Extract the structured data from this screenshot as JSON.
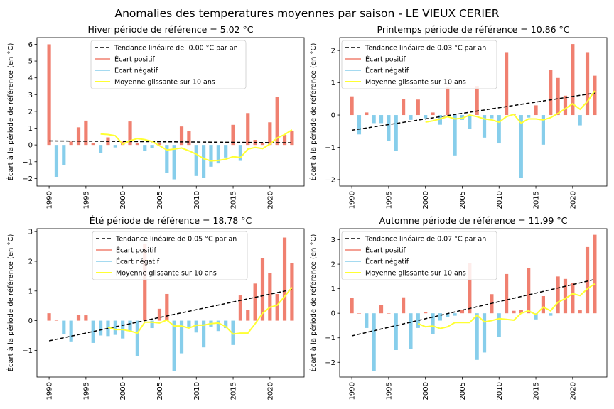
{
  "suptitle": "Anomalies des temperatures moyennes par saison - LE VIEUX CERIER",
  "colors": {
    "positive": "#f08070",
    "negative": "#87ceeb",
    "trend": "#000000",
    "moving_avg": "#ffff33"
  },
  "chart_data": [
    {
      "type": "bar",
      "title": "Hiver période de référence = 5.02 °C",
      "ylabel": "Écart à la période de référence (en °C)",
      "xlabel": "",
      "x": [
        1990,
        1991,
        1992,
        1993,
        1994,
        1995,
        1996,
        1997,
        1998,
        1999,
        2000,
        2001,
        2002,
        2003,
        2004,
        2005,
        2006,
        2007,
        2008,
        2009,
        2010,
        2011,
        2012,
        2013,
        2014,
        2015,
        2016,
        2017,
        2018,
        2019,
        2020,
        2021,
        2022,
        2023
      ],
      "values": [
        6.0,
        -1.9,
        -1.2,
        0.2,
        1.05,
        1.45,
        0.1,
        -0.5,
        0.45,
        -0.15,
        0.2,
        1.4,
        0.1,
        -0.35,
        -0.2,
        0.1,
        -1.65,
        -2.05,
        1.1,
        0.85,
        -1.85,
        -1.95,
        -1.3,
        -1.1,
        -0.75,
        1.2,
        -0.95,
        1.9,
        0.3,
        0.1,
        1.35,
        2.85,
        0.6,
        0.85
      ],
      "moving_avg": [
        null,
        null,
        null,
        null,
        null,
        null,
        null,
        0.65,
        0.62,
        0.55,
        0.05,
        0.25,
        0.38,
        0.32,
        0.2,
        -0.05,
        -0.3,
        -0.25,
        -0.18,
        -0.35,
        -0.55,
        -0.82,
        -0.95,
        -0.92,
        -0.85,
        -0.7,
        -0.75,
        -0.25,
        -0.15,
        -0.22,
        0.05,
        0.42,
        0.62,
        0.9
      ],
      "trend": {
        "start": 0.24,
        "end": 0.13
      },
      "xticks": [
        "1990",
        "1995",
        "2000",
        "2005",
        "2010",
        "2015",
        "2020"
      ],
      "yticks": [
        "−2",
        "−1",
        "0",
        "1",
        "2",
        "3",
        "4",
        "5",
        "6"
      ],
      "ytick_values": [
        -2,
        -1,
        0,
        1,
        2,
        3,
        4,
        5,
        6
      ],
      "ylim": [
        -2.45,
        6.4
      ],
      "legend": [
        "Tendance linéaire de -0.00 °C par an",
        "Écart positif",
        "Écart négatif",
        "Moyenne glissante sur 10 ans"
      ],
      "legend_position": "top-center"
    },
    {
      "type": "bar",
      "title": "Printemps période de référence = 10.86 °C",
      "ylabel": "Écart à la période de référence (en °C)",
      "xlabel": "",
      "x": [
        1990,
        1991,
        1992,
        1993,
        1994,
        1995,
        1996,
        1997,
        1998,
        1999,
        2000,
        2001,
        2002,
        2003,
        2004,
        2005,
        2006,
        2007,
        2008,
        2009,
        2010,
        2011,
        2012,
        2013,
        2014,
        2015,
        2016,
        2017,
        2018,
        2019,
        2020,
        2021,
        2022,
        2023
      ],
      "values": [
        0.58,
        -0.6,
        0.08,
        -0.25,
        -0.25,
        -0.8,
        -1.1,
        0.5,
        -0.15,
        0.48,
        -0.1,
        0.08,
        -0.3,
        0.85,
        -1.25,
        -0.15,
        -0.42,
        0.9,
        -0.7,
        -0.1,
        -0.88,
        1.95,
        0.03,
        -1.95,
        -0.08,
        0.3,
        -0.92,
        1.4,
        1.15,
        0.6,
        2.2,
        -0.32,
        1.95,
        1.22
      ],
      "moving_avg": [
        null,
        null,
        null,
        null,
        null,
        null,
        null,
        null,
        null,
        null,
        -0.22,
        -0.18,
        -0.12,
        -0.05,
        -0.12,
        -0.1,
        0.0,
        -0.05,
        -0.12,
        -0.15,
        -0.22,
        -0.05,
        0.02,
        -0.25,
        -0.12,
        -0.12,
        -0.15,
        -0.08,
        0.05,
        0.2,
        0.35,
        0.18,
        0.42,
        0.75
      ],
      "trend": {
        "start": -0.47,
        "end": 0.68
      },
      "xticks": [
        "1990",
        "1995",
        "2000",
        "2005",
        "2010",
        "2015",
        "2020"
      ],
      "yticks": [
        "−2",
        "−1",
        "0",
        "1",
        "2"
      ],
      "ytick_values": [
        -2,
        -1,
        0,
        1,
        2
      ],
      "ylim": [
        -2.2,
        2.4
      ],
      "legend": [
        "Tendance linéaire de 0.03 °C par an",
        "Écart positif",
        "Écart négatif",
        "Moyenne glissante sur 10 ans"
      ],
      "legend_position": "top-left"
    },
    {
      "type": "bar",
      "title": "Été période de référence = 18.78 °C",
      "ylabel": "Écart à la période de référence (en °C)",
      "xlabel": "",
      "x": [
        1990,
        1991,
        1992,
        1993,
        1994,
        1995,
        1996,
        1997,
        1998,
        1999,
        2000,
        2001,
        2002,
        2003,
        2004,
        2005,
        2006,
        2007,
        2008,
        2009,
        2010,
        2011,
        2012,
        2013,
        2014,
        2015,
        2016,
        2017,
        2018,
        2019,
        2020,
        2021,
        2022,
        2023
      ],
      "values": [
        0.25,
        0.02,
        -0.45,
        -0.7,
        0.2,
        0.18,
        -0.75,
        -0.5,
        -0.52,
        -0.48,
        -0.6,
        -0.35,
        -1.2,
        2.6,
        -0.25,
        0.4,
        0.9,
        -1.7,
        -1.1,
        -0.2,
        -0.4,
        -0.9,
        -0.2,
        -0.35,
        -0.25,
        -0.82,
        0.85,
        0.35,
        1.25,
        2.1,
        1.6,
        0.9,
        2.8,
        1.95
      ],
      "moving_avg": [
        null,
        null,
        null,
        null,
        null,
        null,
        null,
        null,
        -0.22,
        -0.3,
        -0.3,
        -0.35,
        -0.42,
        -0.05,
        -0.05,
        -0.08,
        0.02,
        -0.18,
        -0.18,
        -0.25,
        -0.15,
        -0.15,
        -0.1,
        -0.08,
        -0.2,
        -0.45,
        -0.42,
        -0.42,
        -0.1,
        0.25,
        0.45,
        0.52,
        0.82,
        1.12
      ],
      "trend": {
        "start": -0.68,
        "end": 1.05
      },
      "xticks": [
        "1990",
        "1995",
        "2000",
        "2005",
        "2010",
        "2015",
        "2020"
      ],
      "yticks": [
        "−1",
        "0",
        "1",
        "2",
        "3"
      ],
      "ytick_values": [
        -1,
        0,
        1,
        2,
        3
      ],
      "ylim": [
        -1.9,
        3.1
      ],
      "legend": [
        "Tendance linéaire de 0.05 °C par an",
        "Écart positif",
        "Écart négatif",
        "Moyenne glissante sur 10 ans"
      ],
      "legend_position": "top-center"
    },
    {
      "type": "bar",
      "title": "Automne période de référence = 11.99 °C",
      "ylabel": "Écart à la période de référence (en °C)",
      "xlabel": "",
      "x": [
        1990,
        1991,
        1992,
        1993,
        1994,
        1995,
        1996,
        1997,
        1998,
        1999,
        2000,
        2001,
        2002,
        2003,
        2004,
        2005,
        2006,
        2007,
        2008,
        2009,
        2010,
        2011,
        2012,
        2013,
        2014,
        2015,
        2016,
        2017,
        2018,
        2019,
        2020,
        2021,
        2022,
        2023
      ],
      "values": [
        0.62,
        0.0,
        -0.6,
        -2.35,
        0.35,
        0.0,
        -1.5,
        0.65,
        -1.45,
        -0.6,
        0.05,
        -0.85,
        -0.3,
        -0.15,
        -0.1,
        0.15,
        2.05,
        -1.9,
        -1.6,
        0.78,
        -0.95,
        1.6,
        0.1,
        0.15,
        1.85,
        -0.25,
        0.7,
        -0.1,
        1.5,
        1.4,
        1.25,
        0.12,
        2.7,
        3.2
      ],
      "moving_avg": [
        null,
        null,
        null,
        null,
        null,
        null,
        null,
        null,
        null,
        -0.42,
        -0.55,
        -0.52,
        -0.62,
        -0.55,
        -0.38,
        -0.38,
        -0.38,
        -0.08,
        -0.35,
        -0.3,
        -0.22,
        -0.25,
        -0.28,
        0.0,
        0.1,
        -0.05,
        0.25,
        0.1,
        0.45,
        0.6,
        0.8,
        0.72,
        1.0,
        1.2
      ],
      "trend": {
        "start": -0.92,
        "end": 1.38
      },
      "xticks": [
        "1990",
        "1995",
        "2000",
        "2005",
        "2010",
        "2015",
        "2020"
      ],
      "yticks": [
        "−2",
        "−1",
        "0",
        "1",
        "2",
        "3"
      ],
      "ytick_values": [
        -2,
        -1,
        0,
        1,
        2,
        3
      ],
      "ylim": [
        -2.6,
        3.45
      ],
      "legend": [
        "Tendance linéaire de 0.07 °C par an",
        "Écart positif",
        "Écart négatif",
        "Moyenne glissante sur 10 ans"
      ],
      "legend_position": "top-left"
    }
  ]
}
